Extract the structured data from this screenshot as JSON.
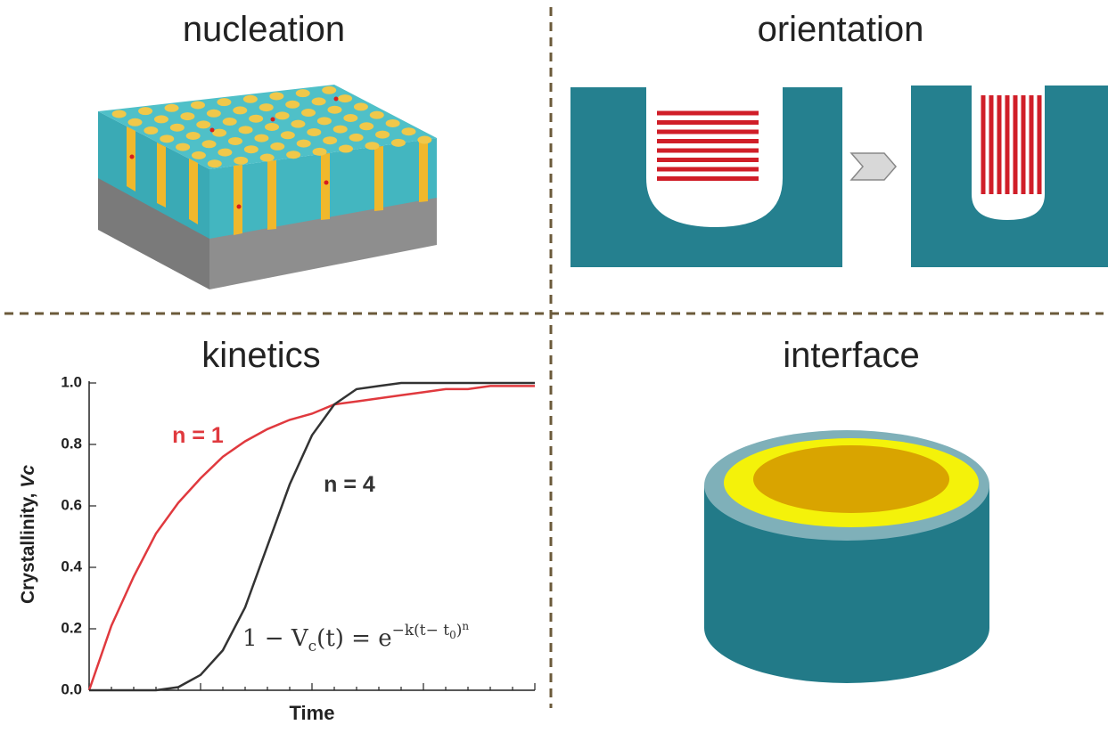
{
  "titles": {
    "nucleation": "nucleation",
    "orientation": "orientation",
    "interface": "interface"
  },
  "chart_data": {
    "type": "line",
    "title": "kinetics",
    "x": [
      0,
      0.5,
      1,
      1.5,
      2,
      2.5,
      3,
      3.5,
      4,
      4.5,
      5,
      5.5,
      6,
      6.5,
      7,
      7.5,
      8,
      8.5,
      9,
      9.5,
      10
    ],
    "xlim": [
      0,
      10
    ],
    "ylim": [
      0,
      1
    ],
    "yticks": [
      {
        "value": 0,
        "label": "0.0"
      },
      {
        "value": 0.2,
        "label": "0.2"
      },
      {
        "value": 0.4,
        "label": "0.4"
      },
      {
        "value": 0.6,
        "label": "0.6"
      },
      {
        "value": 0.8,
        "label": "0.8"
      },
      {
        "value": 1,
        "label": "1.0"
      }
    ],
    "x_label": "Time",
    "y_label": [
      "Crystallinity, ",
      "Vc"
    ],
    "series": [
      {
        "name": "n = 1",
        "color": "#e0393e",
        "values": [
          0,
          0.21,
          0.37,
          0.51,
          0.61,
          0.69,
          0.76,
          0.81,
          0.85,
          0.88,
          0.9,
          0.93,
          0.94,
          0.95,
          0.96,
          0.97,
          0.98,
          0.98,
          0.99,
          0.99,
          0.99
        ]
      },
      {
        "name": "n = 4",
        "color": "#333333",
        "values": [
          0,
          0,
          0,
          0,
          0.01,
          0.05,
          0.13,
          0.27,
          0.47,
          0.67,
          0.83,
          0.93,
          0.98,
          0.99,
          1,
          1,
          1,
          1,
          1,
          1,
          1
        ]
      }
    ],
    "equation": [
      "1 − V",
      "c",
      "(t) = e",
      "−k(t− t",
      "0",
      ")",
      "n"
    ]
  }
}
